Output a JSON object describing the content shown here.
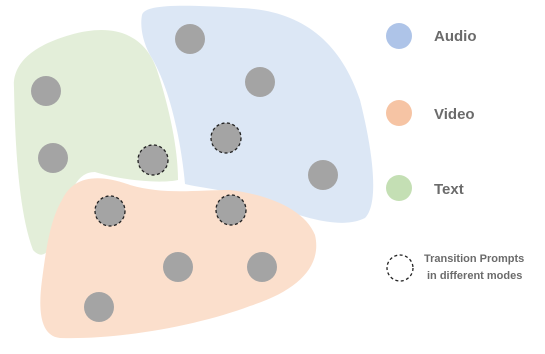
{
  "colors": {
    "audio": "#dce7f5",
    "video": "#fbdfcc",
    "text": "#e3eed9",
    "node": "#a4a4a4",
    "audio_legend": "#aec4e8",
    "video_legend": "#f6c4a4",
    "text_legend": "#c4dfb4",
    "label": "#6b6b6b"
  },
  "legend": {
    "audio": "Audio",
    "video": "Video",
    "text": "Text",
    "transition_line1": "Transition Prompts",
    "transition_line2": "in different modes"
  }
}
